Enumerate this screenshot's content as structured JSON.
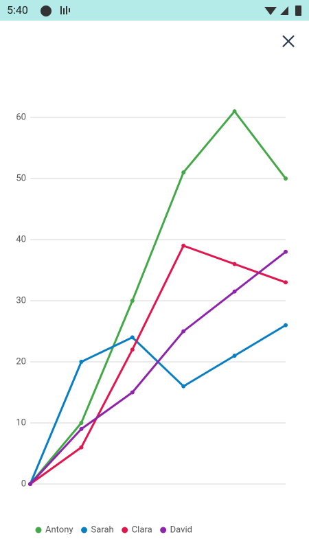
{
  "status_bar": {
    "time": "5:40"
  },
  "chart_data": {
    "type": "line",
    "categories": [
      null,
      null,
      null,
      null,
      null,
      null
    ],
    "series": [
      {
        "name": "Antony",
        "color": "#43a847",
        "values": [
          0,
          10,
          30,
          51,
          61,
          50
        ]
      },
      {
        "name": "Sarah",
        "color": "#0a7ec2",
        "values": [
          0,
          20,
          24,
          16,
          21,
          26
        ]
      },
      {
        "name": "Clara",
        "color": "#e0174f",
        "values": [
          0,
          6,
          22,
          39,
          36,
          33
        ]
      },
      {
        "name": "David",
        "color": "#8e24aa",
        "values": [
          0,
          9,
          15,
          25,
          31.5,
          38
        ]
      }
    ],
    "ylim": [
      0,
      60
    ],
    "yticks": [
      0,
      10,
      20,
      30,
      40,
      50,
      60
    ],
    "grid": true,
    "legend": "bottom"
  }
}
